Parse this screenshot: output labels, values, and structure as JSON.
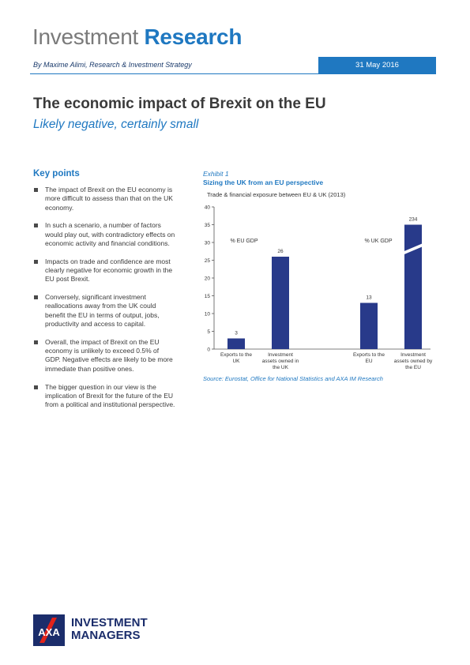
{
  "header": {
    "title_light": "Investment",
    "title_bold": "Research"
  },
  "byline": {
    "author": "By Maxime Alimi, Research & Investment Strategy",
    "date": "31 May 2016"
  },
  "article": {
    "title": "The economic impact of Brexit on the EU",
    "subtitle": "Likely negative, certainly small"
  },
  "key_points": {
    "heading": "Key points",
    "items": [
      "The impact of Brexit on the EU economy is more difficult to assess than that on the UK economy.",
      "In such a scenario, a number of factors would play out, with contradictory effects on economic activity and financial conditions.",
      "Impacts on trade and confidence are most clearly negative for economic growth in the EU post Brexit.",
      "Conversely, significant investment reallocations away from the UK could benefit the EU in terms of output, jobs, productivity and access to capital.",
      "Overall, the impact of Brexit on the EU economy is unlikely to exceed 0.5% of GDP. Negative effects are likely to be more immediate than positive ones.",
      "The bigger question in our view is the implication of Brexit for the future of the EU from a political and institutional perspective."
    ]
  },
  "exhibit": {
    "label": "Exhibit 1",
    "title": "Sizing the UK from an EU perspective",
    "source": "Source: Eurostat, Office for National Statistics and AXA IM Research"
  },
  "chart_data": {
    "type": "bar",
    "title": "Trade & financial exposure between EU & UK (2013)",
    "ylim": [
      0,
      40
    ],
    "yticks": [
      0,
      5,
      10,
      15,
      20,
      25,
      30,
      35,
      40
    ],
    "grid": false,
    "color": "#283a8a",
    "groups": [
      {
        "label": "% EU GDP"
      },
      {
        "label": "% UK GDP"
      }
    ],
    "categories": [
      "Exports to the UK",
      "Investment assets owned in the UK",
      "Exports to the EU",
      "Investment assets owned by the EU"
    ],
    "values": [
      3,
      26,
      13,
      234
    ],
    "value_labels": [
      "3",
      "26",
      "13",
      "234"
    ],
    "broken_bar": {
      "index": 3,
      "note": "axis break on bar exceeding scale"
    }
  },
  "logo": {
    "line1": "INVESTMENT",
    "line2": "MANAGERS",
    "mark": "AXA"
  }
}
